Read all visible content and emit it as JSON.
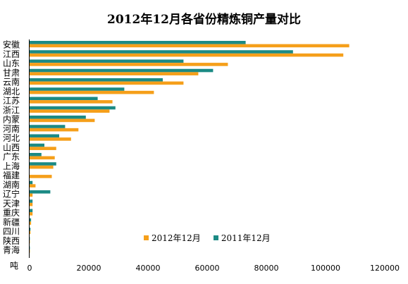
{
  "chart_data": {
    "type": "bar",
    "orientation": "horizontal",
    "title": "2012年12月各省份精炼铜产量对比",
    "unit": "吨",
    "categories": [
      "安徽",
      "江西",
      "山东",
      "甘肃",
      "云南",
      "湖北",
      "江苏",
      "浙江",
      "内蒙",
      "河南",
      "河北",
      "山西",
      "广东",
      "上海",
      "福建",
      "湖南",
      "辽宁",
      "天津",
      "重庆",
      "新疆",
      "四川",
      "陕西",
      "青海"
    ],
    "series": [
      {
        "name": "2012年12月",
        "color": "#f59f1a",
        "values": [
          108000,
          106000,
          67000,
          57000,
          52000,
          42000,
          28000,
          27000,
          22000,
          16500,
          14000,
          9000,
          8500,
          8000,
          7500,
          2000,
          1000,
          1000,
          1000,
          500,
          300,
          100,
          100
        ]
      },
      {
        "name": "2011年12月",
        "color": "#1b8a84",
        "values": [
          73000,
          89000,
          52000,
          62000,
          45000,
          32000,
          23000,
          29000,
          19000,
          12000,
          10000,
          5000,
          4000,
          9000,
          0,
          1000,
          7000,
          1000,
          1000,
          500,
          300,
          100,
          100
        ]
      }
    ],
    "xlim": [
      0,
      120000
    ],
    "xticks": [
      0,
      20000,
      40000,
      60000,
      80000,
      100000,
      120000
    ],
    "grid": false,
    "legend_position": "bottom"
  }
}
